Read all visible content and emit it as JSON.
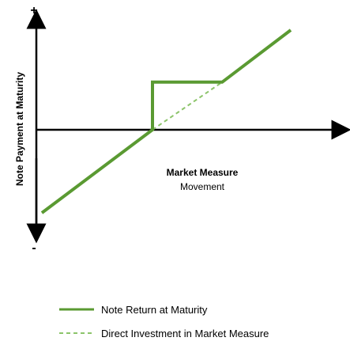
{
  "chart_data": {
    "type": "line",
    "ylabel": "Note Payment at Maturity",
    "y_axis_top_sign": "+",
    "y_axis_bottom_sign": "-",
    "xlabel_line1": "Market Measure",
    "xlabel_line2": "Movement",
    "xlim": [
      -1,
      1.25
    ],
    "ylim": [
      -1.4,
      1.6
    ],
    "series": [
      {
        "name": "Note Return at Maturity",
        "style": "solid",
        "color": "#5a9a32",
        "points": [
          [
            -1,
            -0.75
          ],
          [
            0,
            0
          ],
          [
            0,
            0.43
          ],
          [
            0.63,
            0.43
          ],
          [
            1.25,
            0.9
          ]
        ]
      },
      {
        "name": "Direct Investment in Market Measure",
        "style": "dashed",
        "color": "#8cc46a",
        "points": [
          [
            0,
            0
          ],
          [
            0.63,
            0.43
          ]
        ]
      }
    ],
    "legend": {
      "placement": "bottom",
      "items": [
        {
          "label": "Note Return at Maturity",
          "style": "solid"
        },
        {
          "label": "Direct Investment in Market Measure",
          "style": "dashed"
        }
      ]
    },
    "grid": false
  }
}
